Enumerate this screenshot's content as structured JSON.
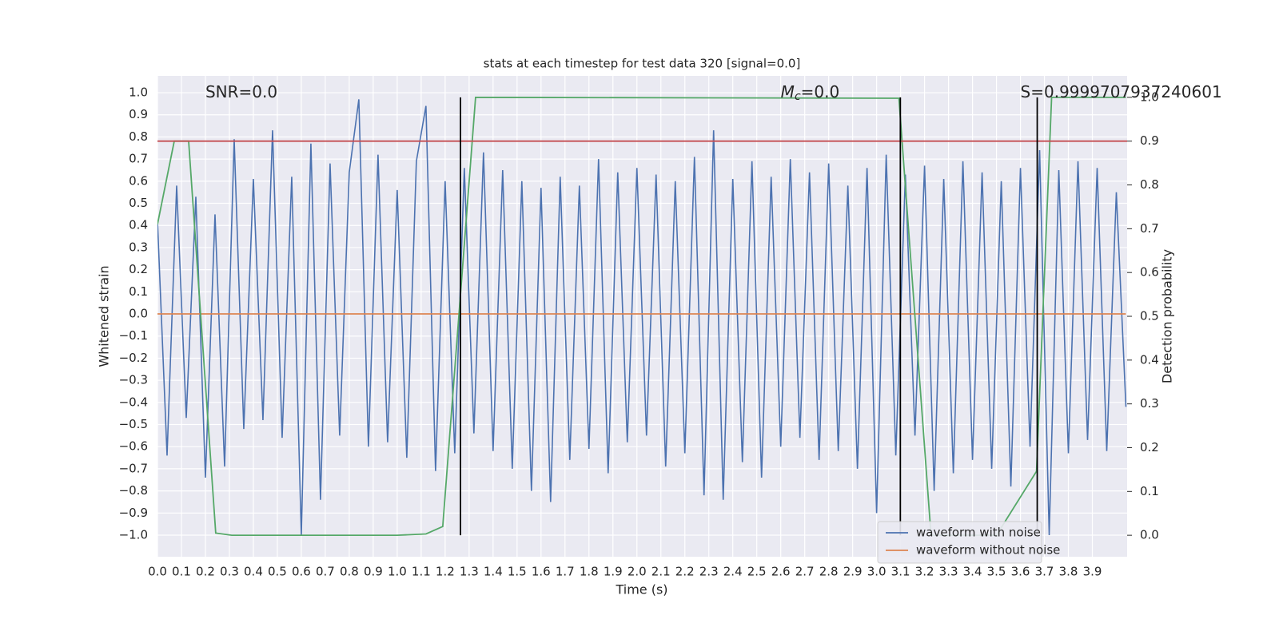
{
  "chart_data": {
    "type": "line",
    "title": "stats at each timestep for test data 320 [signal=0.0]",
    "x_label": "Time (s)",
    "y_label": "Whitened strain",
    "y2_label": "Detection probability",
    "grid": true,
    "legend_position": "lower right",
    "annotations": [
      {
        "text": "SNR=0.0",
        "x": 0.2
      },
      {
        "symbol": "M",
        "subscript": "c",
        "text": "=0.0",
        "x": 2.6
      },
      {
        "text": "S=0.9999707937240601",
        "x": 3.6
      }
    ],
    "xlim": [
      0,
      4.045
    ],
    "ylim": [
      -1.0975,
      1.076
    ],
    "y2lim": [
      -0.049,
      1.049
    ],
    "xticks": [
      {
        "value": 0,
        "label": "0.0"
      },
      0.1,
      0.2,
      0.3,
      0.4,
      0.5,
      0.6,
      0.7,
      0.8,
      0.9,
      {
        "value": 1,
        "label": "1.0"
      },
      1.1,
      1.2,
      1.3,
      1.4,
      1.5,
      1.6,
      1.7,
      1.8,
      1.9,
      {
        "value": 2,
        "label": "2.0"
      },
      2.1,
      2.2,
      2.3,
      2.4,
      2.5,
      2.6,
      2.7,
      2.8,
      2.9,
      {
        "value": 3,
        "label": "3.0"
      },
      3.1,
      3.2,
      3.3,
      3.4,
      3.5,
      3.6,
      3.7,
      3.8,
      3.9
    ],
    "yticks": [
      {
        "value": -1,
        "label": "−1.0"
      },
      {
        "value": -0.9,
        "label": "−0.9"
      },
      {
        "value": -0.8,
        "label": "−0.8"
      },
      {
        "value": -0.7,
        "label": "−0.7"
      },
      {
        "value": -0.6,
        "label": "−0.6"
      },
      {
        "value": -0.5,
        "label": "−0.5"
      },
      {
        "value": -0.4,
        "label": "−0.4"
      },
      {
        "value": -0.3,
        "label": "−0.3"
      },
      {
        "value": -0.2,
        "label": "−0.2"
      },
      {
        "value": -0.1,
        "label": "−0.1"
      },
      {
        "value": 0,
        "label": "0.0"
      },
      0.1,
      0.2,
      0.3,
      0.4,
      0.5,
      0.6,
      0.7,
      0.8,
      0.9,
      {
        "value": 1,
        "label": "1.0"
      }
    ],
    "y2ticks": [
      {
        "value": 0,
        "label": "0.0"
      },
      0.1,
      0.2,
      0.3,
      0.4,
      0.5,
      0.6,
      0.7,
      0.8,
      0.9,
      {
        "value": 1,
        "label": "1.0"
      }
    ],
    "series": [
      {
        "name": "waveform with noise",
        "color": "#4c72b0",
        "x": [
          0,
          0.04,
          0.08,
          0.12,
          0.16,
          0.2,
          0.24,
          0.28,
          0.32,
          0.36,
          0.4,
          0.44,
          0.48,
          0.52,
          0.56,
          0.6,
          0.64,
          0.68,
          0.72,
          0.76,
          0.8,
          0.84,
          0.88,
          0.92,
          0.96,
          1,
          1.04,
          1.08,
          1.12,
          1.16,
          1.2,
          1.24,
          1.28,
          1.32,
          1.36,
          1.4,
          1.44,
          1.48,
          1.52,
          1.56,
          1.6,
          1.64,
          1.68,
          1.72,
          1.76,
          1.8,
          1.84,
          1.88,
          1.92,
          1.96,
          2,
          2.04,
          2.08,
          2.12,
          2.16,
          2.2,
          2.24,
          2.28,
          2.32,
          2.36,
          2.4,
          2.44,
          2.48,
          2.52,
          2.56,
          2.6,
          2.64,
          2.68,
          2.72,
          2.76,
          2.8,
          2.84,
          2.88,
          2.92,
          2.96,
          3,
          3.04,
          3.08,
          3.12,
          3.16,
          3.2,
          3.24,
          3.28,
          3.32,
          3.36,
          3.4,
          3.44,
          3.48,
          3.52,
          3.56,
          3.6,
          3.64,
          3.68,
          3.72,
          3.76,
          3.8,
          3.84,
          3.88,
          3.92,
          3.96,
          4,
          4.04
        ],
        "values": [
          0.42,
          -0.64,
          0.58,
          -0.47,
          0.53,
          -0.74,
          0.45,
          -0.69,
          0.79,
          -0.52,
          0.61,
          -0.48,
          0.83,
          -0.56,
          0.62,
          -1.0,
          0.77,
          -0.84,
          0.68,
          -0.55,
          0.64,
          0.97,
          -0.6,
          0.72,
          -0.58,
          0.56,
          -0.65,
          0.69,
          0.94,
          -0.71,
          0.6,
          -0.63,
          0.66,
          -0.54,
          0.73,
          -0.62,
          0.65,
          -0.7,
          0.6,
          -0.8,
          0.57,
          -0.85,
          0.62,
          -0.66,
          0.58,
          -0.61,
          0.7,
          -0.72,
          0.64,
          -0.58,
          0.66,
          -0.55,
          0.63,
          -0.69,
          0.6,
          -0.63,
          0.71,
          -0.82,
          0.83,
          -0.84,
          0.61,
          -0.67,
          0.69,
          -0.74,
          0.62,
          -0.6,
          0.7,
          -0.56,
          0.64,
          -0.66,
          0.68,
          -0.62,
          0.58,
          -0.7,
          0.66,
          -0.9,
          0.72,
          -0.64,
          0.63,
          -0.55,
          0.67,
          -0.8,
          0.61,
          -0.72,
          0.69,
          -0.66,
          0.64,
          -0.7,
          0.6,
          -0.78,
          0.66,
          -0.6,
          0.74,
          -1.0,
          0.65,
          -0.63,
          0.69,
          -0.57,
          0.66,
          -0.62,
          0.55,
          -0.42
        ]
      },
      {
        "name": "waveform without noise",
        "color": "#dd8452",
        "x": [
          0,
          4.04
        ],
        "values": [
          0,
          0
        ]
      },
      {
        "color": "#55a868",
        "axis": "y2",
        "x": [
          0,
          0.07,
          0.13,
          0.243,
          0.31,
          1.0,
          1.12,
          1.19,
          1.327,
          3.093,
          3.227,
          3.5,
          3.667,
          3.73,
          4.04
        ],
        "values": [
          0.71,
          0.9,
          0.9,
          0.005,
          0.0,
          0.0,
          0.003,
          0.02,
          1.0,
          0.998,
          0.0,
          0.0,
          0.146,
          1.0,
          1.0
        ]
      }
    ],
    "hline": {
      "value": 0.9,
      "axis": "y2",
      "color": "#c44e52"
    },
    "vlines": {
      "x": [
        1.264,
        3.099,
        3.67
      ],
      "ymin": 0,
      "ymax": 1,
      "axis": "y2",
      "color": "#000000"
    }
  }
}
